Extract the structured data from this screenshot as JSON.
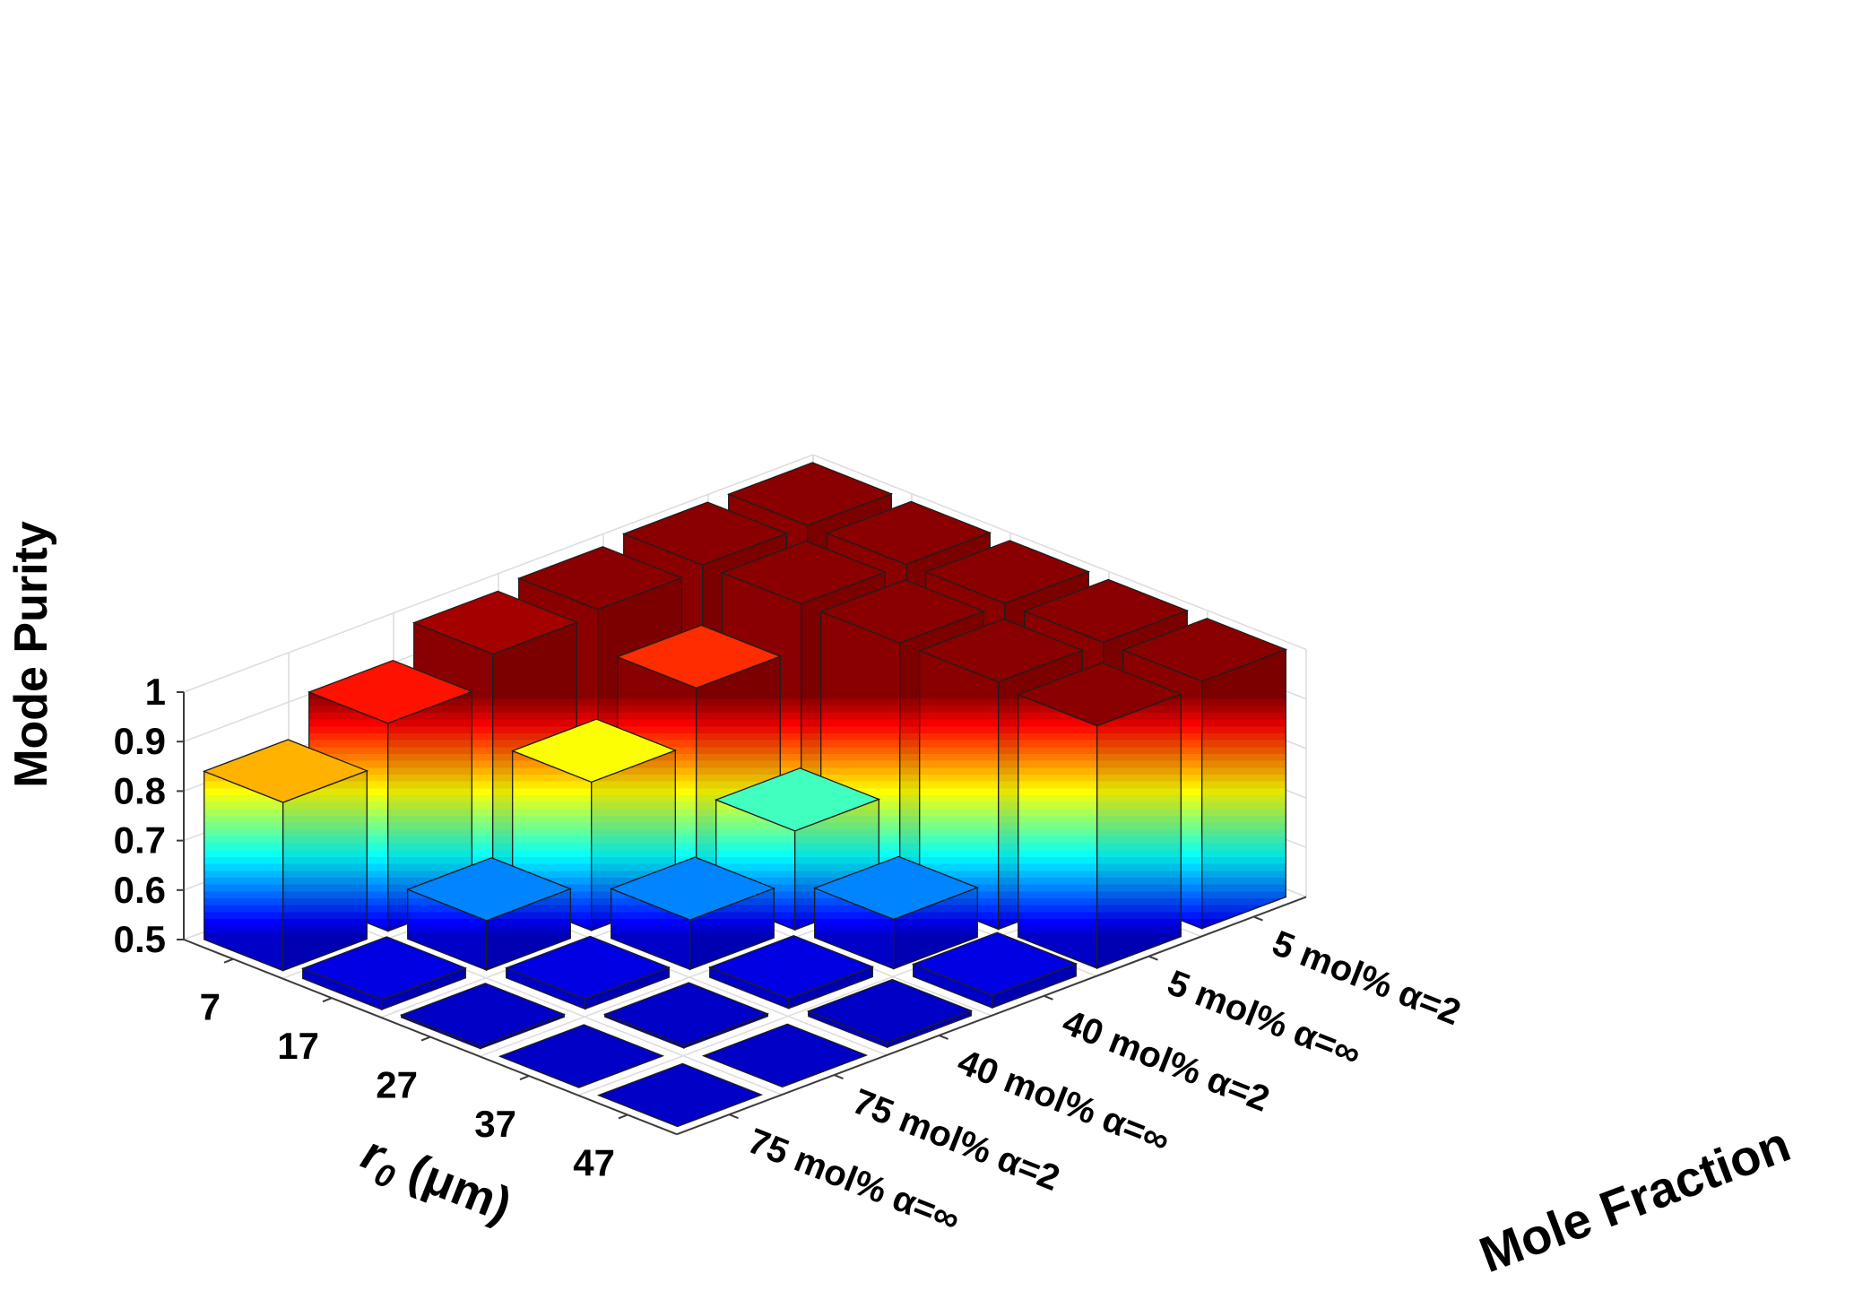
{
  "chart_data": {
    "type": "bar3d",
    "zlabel": "Mode Purity",
    "xlabel_main": "r",
    "xlabel_sub": "0",
    "xlabel_unit": "(μm)",
    "ylabel": "Mole Fraction",
    "zlim": [
      0.5,
      1.0
    ],
    "zticks": [
      "0.5",
      "0.6",
      "0.7",
      "0.8",
      "0.9",
      "1"
    ],
    "x_categories": [
      "7",
      "17",
      "27",
      "37",
      "47"
    ],
    "y_categories": [
      "75 mol% α=∞",
      "75 mol% α=2",
      "40 mol% α=∞",
      "40 mol% α=2",
      "5 mol% α=∞",
      "5 mol% α=2"
    ],
    "colormap": "jet",
    "grid": true,
    "values": [
      [
        0.84,
        0.52,
        0.505,
        0.5,
        0.5
      ],
      [
        0.92,
        0.6,
        0.52,
        0.505,
        0.5
      ],
      [
        0.98,
        0.8,
        0.6,
        0.52,
        0.51
      ],
      [
        0.99,
        0.91,
        0.7,
        0.6,
        0.525
      ],
      [
        1.0,
        1.0,
        1.0,
        1.0,
        0.99
      ],
      [
        1.0,
        1.0,
        1.0,
        1.0,
        1.0
      ]
    ]
  }
}
